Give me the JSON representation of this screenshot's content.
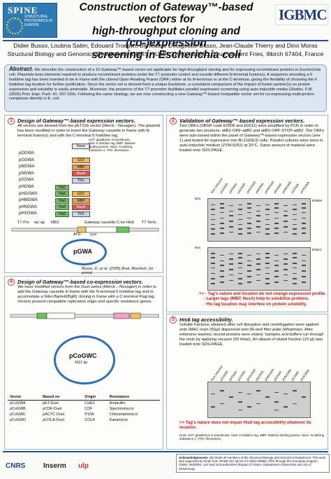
{
  "header": {
    "spine_logo": "SPINE",
    "spine_sub": "STRUCTURAL PROTEOMICS IN EUROPE",
    "igbmc_logo": "IGBMC",
    "title_line1": "Construction of Gateway™-based vectors for",
    "title_line2": "high-throughput cloning and (co-)expression",
    "title_line3": "screening in Escherichia coli",
    "authors": "Didier Busso, Loubna Salim, Edouard Troesch, Bénédicte Delagoutte-Busso, Jean-Claude Thierry and Dino Moras",
    "affiliation": "Structural Biology and Genomics Department (CNRS – UMR 7104), IGBMC, 1 rue Laurent Fries, Illkirch 67404, France"
  },
  "abstract": {
    "heading": "Abstract.",
    "text": "We describe the construction of a 10 Gateway™-based vector set applicable for high-throughput cloning and for expressing recombinant proteins in Escherichia coli. Plasmids bear elements required to produce recombinant proteins under the T7 promoter control and encode different N-terminal fusion(s). A sequence encoding a 6 histidine tag has been inserted to be in frame with the cloned Open Reading Frame (ORF) either at its N-terminus or at the C-terminus, giving the flexibility of choosing the 6 histidine tag location for further purification. Since the vector set is derived from a unique backbone, a consistent comparison of the impact of fusion partner(s) on protein expression and solubility is easily amenable. Moreover, the presence of the T7 promoter facilitates parallel expression screening using auto-inducible media (Studier, F.W. (2005) Prot. Expr. Purif. 41: 207-234). Following the same strategy, we are now constructing a new Gateway™-based compatible vector set for co-expressing multi-protein complexes directly in E. coli."
  },
  "panel1": {
    "num": "1",
    "title": "Design of Gateway™-based expression vectors.",
    "text": "All vectors are derived from the pET22b vector (Merck - Novagen). The plasmid has been modified in order to insert the Gateway cassette in frame with N-terminal fusion(s) and with the C-terminal 6 histidine tag.",
    "tag_header": "None",
    "vectors": [
      {
        "name": "pOGWA",
        "tags": [],
        "tag_labels": [
          ""
        ]
      },
      {
        "name": "pGGWA",
        "tags": [
          "gst"
        ],
        "tag_labels": [
          "GST"
        ]
      },
      {
        "name": "pMGWA",
        "tags": [
          "mbp"
        ],
        "tag_labels": [
          "MBP"
        ]
      },
      {
        "name": "pNGWA",
        "tags": [
          "nusa"
        ],
        "tag_labels": [
          "NusA"
        ]
      },
      {
        "name": "pXGWA",
        "tags": [
          "trx"
        ],
        "tag_labels": [
          "TRX"
        ]
      },
      {
        "name": "pHGWA",
        "tags": [
          "his"
        ],
        "tag_labels": [
          "His6"
        ]
      },
      {
        "name": "pHGGWA",
        "tags": [
          "his",
          "gst"
        ],
        "tag_labels": [
          "His6",
          "GST"
        ]
      },
      {
        "name": "pHMGWA",
        "tags": [
          "his",
          "mbp"
        ],
        "tag_labels": [
          "His6",
          "MBP"
        ]
      },
      {
        "name": "pHNGWA",
        "tags": [
          "his",
          "nusa"
        ],
        "tag_labels": [
          "His6",
          "NusA"
        ]
      },
      {
        "name": "pHXGWA",
        "tags": [
          "his",
          "trx"
        ],
        "tag_labels": [
          "His6",
          "TRX"
        ]
      }
    ],
    "legend": "GST: glutathione S-transferase, His6: 6 histidine tag, MBP: Maltose binding protein, NusA: N-utilizing substance A, TRX: thioredoxin.",
    "cassette_labels": [
      "T7 Pro",
      "lac op",
      "RBS",
      "Gateway cassette",
      "C-ter His6",
      "T7 Term."
    ],
    "atg": "ATG",
    "kpnl": "KpnI",
    "plasmid": "pGWA",
    "citation": "Busso, D. et al. (2005) Anal. Biochem. (in press)"
  },
  "panel2": {
    "num": "2",
    "title": "Validation of Gateway™-based expression vectors.",
    "text": "Two ORFs (SBGP code E0508 and E0511) were amplified by PCR in order to generate two products: attB1-ORF-attB2 and attB1-ORF-STOP-attB2. The ORFs were sub-cloned within the panel of Gateway™-based expression vectors (see 1) and tested for expression into BL21(DE3) cells. Parallel cultures were done in auto-inducible medium (ZYM-5052) at 20°C. Same amount of material were loaded onto SDS-PAGE.",
    "lanes": [
      "Non induced",
      "pOGWA",
      "pHGWA",
      "pGGWA",
      "pHGGWA",
      "pMGWA",
      "pHMGWA",
      "pNGWA",
      "pHNGWA",
      "pXGWA",
      "pHXGWA"
    ],
    "gel1_label": "E0508",
    "gel2_label": "E0511",
    "kda": "kDa",
    "findings": [
      "Tag's nature and location do not change expression profile.",
      "Larger tags (MBP, NusA) help to solubilize proteins.",
      "His tag location may interfere on protein solubility."
    ]
  },
  "panel3": {
    "num": "3",
    "title": "His6 tag accessibility.",
    "text": "Soluble fractions obtained after cell disruption and centrifugation were applied onto IMAC resin (50µl) dispensed onto 96-well filter plate (Whatman). After extensive washes, bound proteins were eluted. Samples and buffers run through the resin by applying vacuum (50 mbar). An aliquot of eluted fraction (10 µl) was loaded onto SDS-PAGE.",
    "finding": "Tag's nature does not impair His6 tag accessibility whatever its location.",
    "note": "Note: GST: glutathione S-transferase, His6: 6 histidine tag, MBP: Maltose binding protein, NusA: N-utilizing substance A, TRX: thioredoxin."
  },
  "panel4": {
    "num": "4",
    "title": "Design of Gateway™-based co-expression vectors.",
    "text": "We have modified vectors from the Duet series (Merck – Novagen) in order to add the Gateway cassette in frame with the N-terminal 6 histidine tag and to accomodate a NdeI-BamHI(BglII) cloning in frame with a C-terminal Flag tag. Vectors present compatible replication origin and specific resistance genes.",
    "plasmid": "pCoGWC",
    "plasmid_size": "5621 bp",
    "table_headers": [
      "Vector",
      "Based on",
      "Origin",
      "Resistance"
    ],
    "table_rows": [
      [
        "pCoGWA",
        "pET-Duet",
        "ColE1",
        "Ampicillin"
      ],
      [
        "pCoGWB",
        "pCDF-Duet",
        "CDF",
        "Spectinomycin"
      ],
      [
        "pCoGWC",
        "pACYC-Duet",
        "P15A",
        "Chloramphenicol"
      ],
      [
        "pCoGWD",
        "pCOLA-Duet",
        "COLA",
        "Kanamycin"
      ]
    ]
  },
  "footer": {
    "ack_heading": "Acknowledgements:",
    "ack_text": "We thank all members of the Structural Biology and Genomics Department. This work was supported by funds from SPINE (EC QLG2-CT-2002-00988), PNS through the Genopole program, CNRS, INSERM, ULP and local authorities (Region of Alsace, Department of Bas-Rhin and city of Strasbourg).",
    "logos": [
      "CNRS",
      "Inserm",
      "ulp"
    ]
  },
  "colors": {
    "accent_blue": "#1f4e9c",
    "abstract_bg": "#dce6f1",
    "red_findings": "#c2211f"
  }
}
